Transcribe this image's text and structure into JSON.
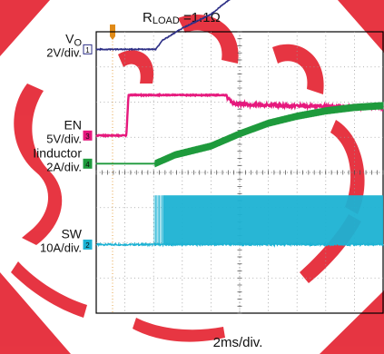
{
  "title_prefix": "R",
  "title_sub": "LOAD",
  "title_suffix": " =1.1Ω",
  "xlabel": "2ms/div.",
  "colors": {
    "background": "#ffffff",
    "grid": "#9a9a9a",
    "vo": "#2d2f86",
    "en": "#e6197d",
    "inductor": "#1e9a3c",
    "sw": "#1cb2d3",
    "trigger": "#e08a17",
    "watermark": "#e4202e"
  },
  "chart_data": {
    "type": "line",
    "title": "RLOAD =1.1Ω",
    "xlabel": "2ms/div.",
    "x_unit": "ms",
    "xlim": [
      0,
      20
    ],
    "grid": true,
    "channels": [
      {
        "id": "vo",
        "marker": "1",
        "label_main": "V",
        "label_sub": "O",
        "scale": "2V/div.",
        "baseline_div": 3.5,
        "x": [
          0,
          4.15,
          4.6,
          6.0,
          8.0,
          10.0,
          12.0,
          14.0,
          16.0,
          20.0
        ],
        "y_div": [
          0,
          0,
          0.25,
          0.6,
          1.0,
          1.65,
          1.8,
          1.8,
          1.8,
          1.8
        ]
      },
      {
        "id": "en",
        "marker": "3",
        "label_main": "EN",
        "label_sub": "",
        "scale": "5V/div.",
        "baseline_div": 1.05,
        "x": [
          0,
          2.1,
          2.25,
          9.0,
          9.5,
          13.0,
          20.0
        ],
        "y_div": [
          0,
          0,
          1.15,
          1.15,
          0.9,
          0.85,
          0.8
        ]
      },
      {
        "id": "inductor",
        "marker": "4",
        "label_main": "Iinductor",
        "label_sub": "",
        "scale": "2A/div.",
        "baseline_div": 0.25,
        "x": [
          0,
          4.1,
          5.5,
          8.0,
          10.0,
          12.0,
          14.0,
          16.0,
          18.0,
          20.0
        ],
        "y_div": [
          0,
          0,
          0.25,
          0.5,
          0.85,
          1.15,
          1.35,
          1.5,
          1.6,
          1.65
        ]
      },
      {
        "id": "sw",
        "marker": "2",
        "label_main": "SW",
        "label_sub": "",
        "scale": "10A/div.",
        "baseline_div": -2.05,
        "x": [
          0,
          4.05,
          20.0
        ],
        "y_div": [
          0,
          0,
          0
        ],
        "switching_start": 4.05,
        "switching_amplitude_div": 1.4
      }
    ]
  }
}
